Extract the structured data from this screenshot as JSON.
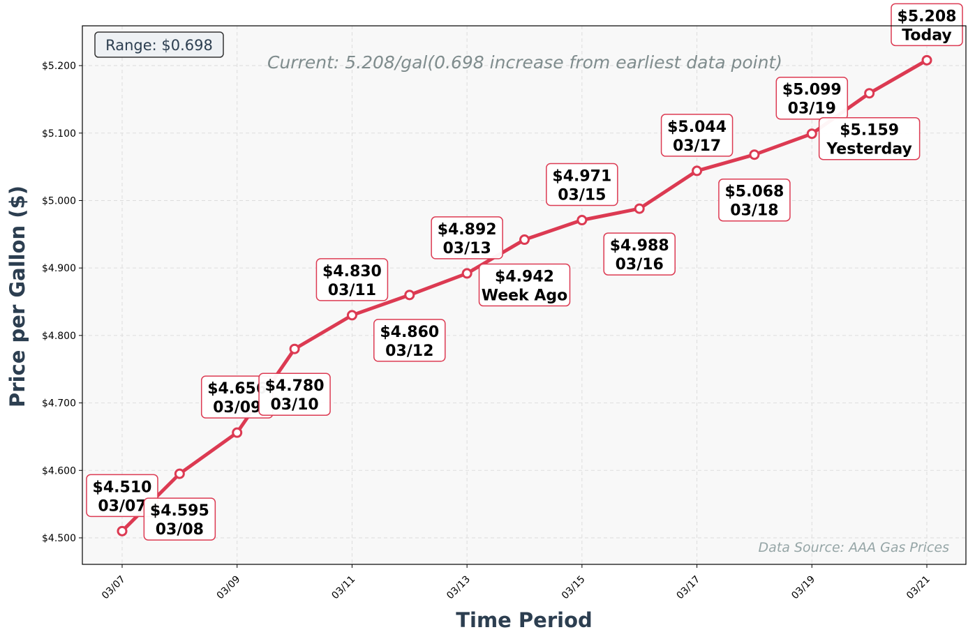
{
  "chart_data": {
    "type": "line",
    "title": "",
    "xlabel": "Time Period",
    "ylabel": "Price per Gallon ($)",
    "x": [
      "03/07",
      "03/08",
      "03/09",
      "03/10",
      "03/11",
      "03/12",
      "03/13",
      "03/14",
      "03/15",
      "03/16",
      "03/17",
      "03/18",
      "03/19",
      "03/20",
      "03/21"
    ],
    "values": [
      4.51,
      4.595,
      4.656,
      4.78,
      4.83,
      4.86,
      4.892,
      4.942,
      4.971,
      4.988,
      5.044,
      5.068,
      5.099,
      5.159,
      5.208
    ],
    "point_labels": [
      [
        "$4.510",
        "03/07"
      ],
      [
        "$4.595",
        "03/08"
      ],
      [
        "$4.656",
        "03/09"
      ],
      [
        "$4.780",
        "03/10"
      ],
      [
        "$4.830",
        "03/11"
      ],
      [
        "$4.860",
        "03/12"
      ],
      [
        "$4.892",
        "03/13"
      ],
      [
        "$4.942",
        "Week Ago"
      ],
      [
        "$4.971",
        "03/15"
      ],
      [
        "$4.988",
        "03/16"
      ],
      [
        "$5.044",
        "03/17"
      ],
      [
        "$5.068",
        "03/18"
      ],
      [
        "$5.099",
        "03/19"
      ],
      [
        "$5.159",
        "Yesterday"
      ],
      [
        "$5.208",
        "Today"
      ]
    ],
    "x_ticks": [
      "03/07",
      "03/09",
      "03/11",
      "03/13",
      "03/15",
      "03/17",
      "03/19",
      "03/21"
    ],
    "y_ticks": [
      "$4.500",
      "$4.600",
      "$4.700",
      "$4.800",
      "$4.900",
      "$5.000",
      "$5.100",
      "$5.200"
    ],
    "ylim": [
      4.4607,
      5.259
    ],
    "grid": true,
    "line_color": "#dc3a52",
    "background": "#f8f8f8"
  },
  "annotations": {
    "range": "Range: $0.698",
    "current": "Current: 5.208/gal(0.698 increase from earliest data point)",
    "source": "Data Source: AAA Gas Prices"
  }
}
